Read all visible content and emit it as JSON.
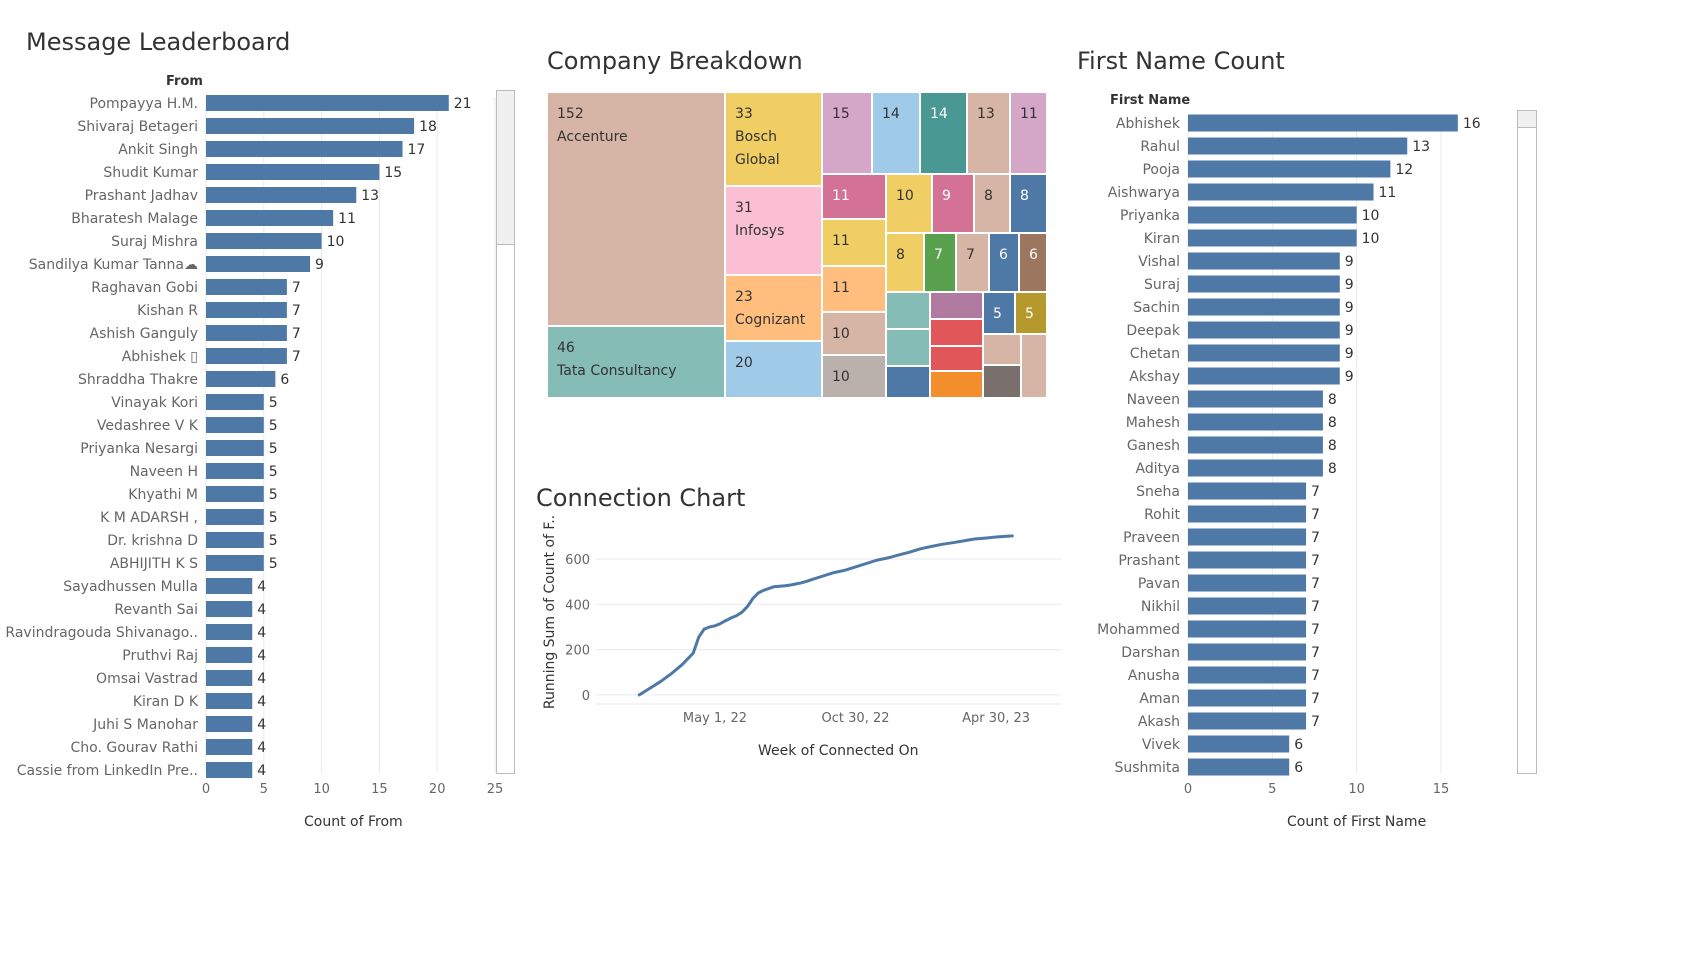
{
  "colors": {
    "bar": "#4e79a7",
    "line": "#4e79a7",
    "grid": "#eaeaea",
    "axis_text": "#666666"
  },
  "chart_data": [
    {
      "id": "message-leaderboard",
      "type": "bar",
      "orientation": "horizontal",
      "title": "Message Leaderboard",
      "row_header": "From",
      "xlabel": "Count of From",
      "xlim": [
        0,
        25
      ],
      "xticks": [
        0,
        5,
        10,
        15,
        20,
        25
      ],
      "categories": [
        "Pompayya H.M.",
        "Shivaraj Betageri",
        "Ankit Singh",
        "Shudit Kumar",
        "Prashant Jadhav",
        "Bharatesh Malage",
        "Suraj Mishra",
        "Sandilya  Kumar Tanna☁",
        "Raghavan Gobi",
        "Kishan R",
        "Ashish Ganguly",
        "Abhishek ▯",
        "Shraddha Thakre",
        "Vinayak Kori",
        "Vedashree V K",
        "Priyanka Nesargi",
        "Naveen H",
        "Khyathi M",
        "K M ADARSH ,",
        "Dr. krishna D",
        "ABHIJITH K S",
        "Sayadhussen  Mulla",
        "Revanth Sai",
        "Ravindragouda Shivanago..",
        "Pruthvi Raj",
        "Omsai Vastrad",
        "Kiran D K",
        "Juhi S Manohar",
        "Cho. Gourav Rathi",
        "Cassie from LinkedIn Pre.."
      ],
      "values": [
        21,
        18,
        17,
        15,
        13,
        11,
        10,
        9,
        7,
        7,
        7,
        7,
        6,
        5,
        5,
        5,
        5,
        5,
        5,
        5,
        5,
        4,
        4,
        4,
        4,
        4,
        4,
        4,
        4,
        4
      ]
    },
    {
      "id": "company-breakdown",
      "type": "treemap",
      "title": "Company Breakdown",
      "cells": [
        {
          "label": "Accenture",
          "value": 152,
          "color": "#d7b5a6"
        },
        {
          "label": "Tata Consultancy",
          "value": 46,
          "color": "#86bcb6"
        },
        {
          "label": "Bosch\nGlobal",
          "value": 33,
          "color": "#f1ce63"
        },
        {
          "label": "Infosys",
          "value": 31,
          "color": "#fabfd2"
        },
        {
          "label": "Cognizant",
          "value": 23,
          "color": "#ffbe7d"
        },
        {
          "label": "",
          "value": 20,
          "color": "#a0cbe8"
        },
        {
          "label": "",
          "value": 15,
          "color": "#d4a6c8"
        },
        {
          "label": "",
          "value": 14,
          "color": "#a0cbe8"
        },
        {
          "label": "",
          "value": 14,
          "color": "#499894"
        },
        {
          "label": "",
          "value": 13,
          "color": "#d7b5a6"
        },
        {
          "label": "",
          "value": 11,
          "color": "#d4a6c8"
        },
        {
          "label": "",
          "value": 11,
          "color": "#d37295"
        },
        {
          "label": "",
          "value": 10,
          "color": "#f1ce63"
        },
        {
          "label": "",
          "value": 9,
          "color": "#d37295"
        },
        {
          "label": "",
          "value": 8,
          "color": "#d7b5a6"
        },
        {
          "label": "",
          "value": 8,
          "color": "#4e79a7"
        },
        {
          "label": "",
          "value": 11,
          "color": "#f1ce63"
        },
        {
          "label": "",
          "value": 8,
          "color": "#f1ce63"
        },
        {
          "label": "",
          "value": 7,
          "color": "#59a14f"
        },
        {
          "label": "",
          "value": 7,
          "color": "#d7b5a6"
        },
        {
          "label": "",
          "value": 6,
          "color": "#4e79a7"
        },
        {
          "label": "",
          "value": 6,
          "color": "#9d7660"
        },
        {
          "label": "",
          "value": 11,
          "color": "#ffbe7d"
        },
        {
          "label": "",
          "value": 5,
          "color": "#4e79a7"
        },
        {
          "label": "",
          "value": 5,
          "color": "#b6992d"
        },
        {
          "label": "",
          "value": 10,
          "color": "#d7b5a6"
        },
        {
          "label": "",
          "value": 10,
          "color": "#bab0ac"
        },
        {
          "label": "",
          "value": null,
          "color": "#86bcb6"
        },
        {
          "label": "",
          "value": null,
          "color": "#b07aa1"
        },
        {
          "label": "",
          "value": null,
          "color": "#e15759"
        },
        {
          "label": "",
          "value": null,
          "color": "#86bcb6"
        },
        {
          "label": "",
          "value": null,
          "color": "#e15759"
        },
        {
          "label": "",
          "value": null,
          "color": "#d7b5a6"
        },
        {
          "label": "",
          "value": null,
          "color": "#d7b5a6"
        },
        {
          "label": "",
          "value": null,
          "color": "#4e79a7"
        },
        {
          "label": "",
          "value": null,
          "color": "#f28e2b"
        },
        {
          "label": "",
          "value": null,
          "color": "#79706e"
        }
      ]
    },
    {
      "id": "connection-chart",
      "type": "line",
      "title": "Connection Chart",
      "xlabel": "Week of Connected On",
      "ylabel": "Running Sum of Count of F..",
      "ylim": [
        -40,
        750
      ],
      "yticks": [
        0,
        200,
        400,
        600
      ],
      "xticks": [
        "May 1, 22",
        "Oct 30, 22",
        "Apr 30, 23"
      ],
      "xlim_weeks": [
        -22,
        64
      ],
      "xtick_weeks": [
        0,
        26,
        52
      ],
      "x": [
        -14,
        -12,
        -10,
        -8,
        -6,
        -4,
        -3,
        -2,
        -1,
        0,
        1,
        2,
        3,
        4,
        5,
        6,
        7,
        8,
        9,
        10,
        11,
        12,
        13,
        14,
        15,
        16,
        17,
        18,
        20,
        22,
        24,
        26,
        28,
        30,
        32,
        34,
        36,
        38,
        40,
        42,
        44,
        46,
        48,
        50,
        52,
        54,
        55
      ],
      "y": [
        0,
        30,
        60,
        95,
        135,
        185,
        255,
        290,
        300,
        305,
        315,
        328,
        340,
        350,
        365,
        390,
        425,
        450,
        462,
        470,
        478,
        480,
        482,
        485,
        490,
        495,
        502,
        510,
        525,
        540,
        550,
        565,
        580,
        595,
        605,
        618,
        630,
        645,
        655,
        665,
        672,
        680,
        688,
        692,
        697,
        700,
        702
      ]
    },
    {
      "id": "first-name-count",
      "type": "bar",
      "orientation": "horizontal",
      "title": "First Name Count",
      "row_header": "First Name",
      "xlabel": "Count of First Name",
      "xlim": [
        0,
        18.5
      ],
      "xticks": [
        0,
        5,
        10,
        15
      ],
      "categories": [
        "Abhishek",
        "Rahul",
        "Pooja",
        "Aishwarya",
        "Priyanka",
        "Kiran",
        "Vishal",
        "Suraj",
        "Sachin",
        "Deepak",
        "Chetan",
        "Akshay",
        "Naveen",
        "Mahesh",
        "Ganesh",
        "Aditya",
        "Sneha",
        "Rohit",
        "Praveen",
        "Prashant",
        "Pavan",
        "Nikhil",
        "Mohammed",
        "Darshan",
        "Anusha",
        "Aman",
        "Akash",
        "Vivek",
        "Sushmita"
      ],
      "values": [
        16,
        13,
        12,
        11,
        10,
        10,
        9,
        9,
        9,
        9,
        9,
        9,
        8,
        8,
        8,
        8,
        7,
        7,
        7,
        7,
        7,
        7,
        7,
        7,
        7,
        7,
        7,
        6,
        6
      ]
    }
  ]
}
